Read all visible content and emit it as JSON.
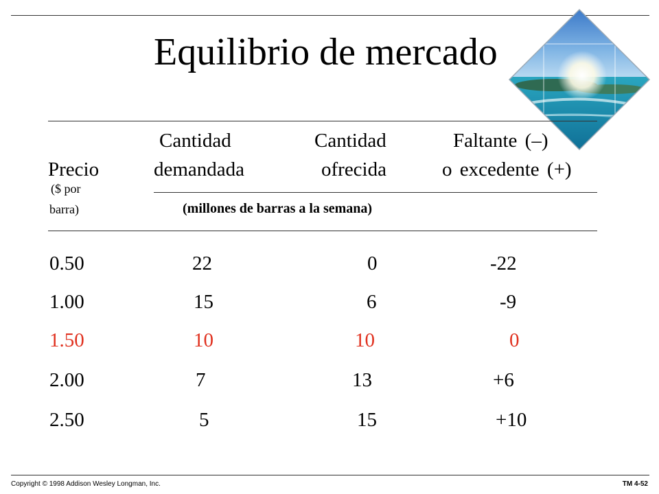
{
  "slide": {
    "title": "Equilibrio de mercado"
  },
  "table": {
    "headers": {
      "price_top": "",
      "price": "Precio",
      "price_unit_line1": "($ por",
      "price_unit_line2": "barra)",
      "demand_line1": "Cantidad",
      "demand_line2": "demandada",
      "supply_line1": "Cantidad",
      "supply_line2": "ofrecida",
      "diff_line1": "Faltante (–)",
      "diff_line2": "o excedente (+)",
      "units": "(millones de barras a la semana)"
    },
    "rows": [
      {
        "price": "0.50",
        "demanded": "22",
        "supplied": "0",
        "difference": "-22",
        "highlight": false
      },
      {
        "price": "1.00",
        "demanded": "15",
        "supplied": "6",
        "difference": "-9",
        "highlight": false
      },
      {
        "price": "1.50",
        "demanded": "10",
        "supplied": "10",
        "difference": "0",
        "highlight": true
      },
      {
        "price": "2.00",
        "demanded": "7",
        "supplied": "13",
        "difference": "+6",
        "highlight": false
      },
      {
        "price": "2.50",
        "demanded": "5",
        "supplied": "15",
        "difference": "+10",
        "highlight": false
      }
    ],
    "highlight_color": "#e0301e"
  },
  "footer": {
    "copyright": "Copyright © 1998 Addison Wesley Longman, Inc.",
    "slide_id": "TM 4-52"
  },
  "decoration": {
    "image": "tropical-island-photo"
  }
}
